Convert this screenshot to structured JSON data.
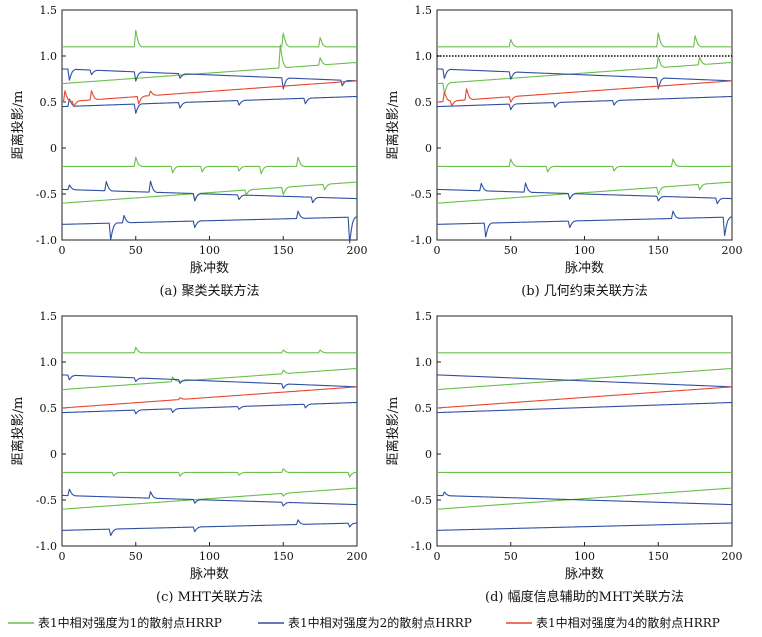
{
  "figure": {
    "legend": [
      {
        "label": "表1中相对强度为1的散射点HRRP",
        "color": "#6abf4b"
      },
      {
        "label": "表1中相对强度为2的散射点HRRP",
        "color": "#2f4fa3"
      },
      {
        "label": "表1中相对强度为4的散射点HRRP",
        "color": "#e8452c"
      }
    ]
  },
  "chart_data": [
    {
      "type": "line",
      "caption": "(a) 聚类关联方法",
      "xlabel": "脉冲数",
      "ylabel": "距离投影/m",
      "xlim": [
        0,
        200
      ],
      "ylim": [
        -1.0,
        1.5
      ],
      "xticks": [
        "0",
        "50",
        "100",
        "150",
        "200"
      ],
      "yticks": [
        "-1.0",
        "-0.5",
        "0",
        "0.5",
        "1.0",
        "1.5"
      ],
      "dotted_reference": null,
      "series": [
        {
          "name": "g1",
          "color_key": 0,
          "start": 1.1,
          "end": 1.1,
          "spikes": [
            [
              50,
              0.18
            ],
            [
              150,
              0.15
            ],
            [
              175,
              0.1
            ]
          ]
        },
        {
          "name": "g2",
          "color_key": 0,
          "start": 0.7,
          "end": 0.93,
          "spikes": [
            [
              148,
              0.25
            ],
            [
              175,
              0.08
            ]
          ]
        },
        {
          "name": "g3",
          "color_key": 0,
          "start": -0.2,
          "end": -0.2,
          "spikes": [
            [
              50,
              0.1
            ],
            [
              75,
              -0.07
            ],
            [
              95,
              -0.06
            ],
            [
              120,
              -0.05
            ],
            [
              135,
              -0.08
            ],
            [
              160,
              0.1
            ]
          ]
        },
        {
          "name": "g4",
          "color_key": 0,
          "start": -0.6,
          "end": -0.37,
          "spikes": [
            [
              90,
              -0.07
            ],
            [
              125,
              -0.05
            ],
            [
              150,
              -0.08
            ],
            [
              178,
              -0.06
            ]
          ]
        },
        {
          "name": "b1",
          "color_key": 1,
          "start": 0.86,
          "end": 0.73,
          "spikes": [
            [
              5,
              -0.12
            ],
            [
              20,
              -0.05
            ],
            [
              50,
              -0.1
            ],
            [
              80,
              -0.05
            ],
            [
              150,
              -0.12
            ],
            [
              190,
              -0.06
            ]
          ]
        },
        {
          "name": "b2",
          "color_key": 1,
          "start": 0.45,
          "end": 0.56,
          "spikes": [
            [
              5,
              0.08
            ],
            [
              50,
              -0.1
            ],
            [
              80,
              -0.06
            ],
            [
              120,
              -0.05
            ],
            [
              165,
              -0.06
            ]
          ]
        },
        {
          "name": "b3",
          "color_key": 1,
          "start": -0.45,
          "end": -0.55,
          "spikes": [
            [
              5,
              0.05
            ],
            [
              30,
              0.1
            ],
            [
              60,
              0.12
            ],
            [
              90,
              -0.08
            ],
            [
              120,
              -0.05
            ],
            [
              170,
              -0.06
            ]
          ]
        },
        {
          "name": "b4",
          "color_key": 1,
          "start": -0.83,
          "end": -0.75,
          "spikes": [
            [
              33,
              -0.18
            ],
            [
              42,
              0.08
            ],
            [
              90,
              -0.07
            ],
            [
              160,
              0.08
            ],
            [
              195,
              -0.28
            ]
          ]
        },
        {
          "name": "r1",
          "color_key": 2,
          "start": 0.5,
          "end": 0.73,
          "spikes": [
            [
              2,
              0.12
            ],
            [
              8,
              -0.06
            ],
            [
              20,
              0.1
            ],
            [
              52,
              -0.08
            ],
            [
              60,
              0.05
            ]
          ]
        }
      ]
    },
    {
      "type": "line",
      "caption": "(b) 几何约束关联方法",
      "xlabel": "脉冲数",
      "ylabel": "距离投影/m",
      "xlim": [
        0,
        200
      ],
      "ylim": [
        -1.0,
        1.5
      ],
      "xticks": [
        "0",
        "50",
        "100",
        "150",
        "200"
      ],
      "yticks": [
        "-1.0",
        "-0.5",
        "0",
        "0.5",
        "1.0",
        "1.5"
      ],
      "dotted_reference": 1.0,
      "series": [
        {
          "name": "g1",
          "color_key": 0,
          "start": 1.1,
          "end": 1.1,
          "spikes": [
            [
              50,
              0.08
            ],
            [
              150,
              0.15
            ],
            [
              175,
              0.12
            ]
          ]
        },
        {
          "name": "g2",
          "color_key": 0,
          "start": 0.7,
          "end": 0.93,
          "spikes": [
            [
              5,
              -0.12
            ],
            [
              150,
              0.12
            ],
            [
              178,
              0.08
            ]
          ]
        },
        {
          "name": "g3",
          "color_key": 0,
          "start": -0.2,
          "end": -0.2,
          "spikes": [
            [
              50,
              0.08
            ],
            [
              75,
              -0.06
            ],
            [
              120,
              -0.05
            ],
            [
              160,
              0.08
            ]
          ]
        },
        {
          "name": "g4",
          "color_key": 0,
          "start": -0.6,
          "end": -0.37,
          "spikes": [
            [
              90,
              -0.06
            ],
            [
              150,
              -0.08
            ],
            [
              178,
              -0.06
            ]
          ]
        },
        {
          "name": "b1",
          "color_key": 1,
          "start": 0.86,
          "end": 0.73,
          "spikes": [
            [
              5,
              -0.1
            ],
            [
              50,
              -0.08
            ],
            [
              150,
              -0.12
            ]
          ]
        },
        {
          "name": "b2",
          "color_key": 1,
          "start": 0.45,
          "end": 0.56,
          "spikes": [
            [
              50,
              -0.06
            ],
            [
              80,
              -0.05
            ],
            [
              120,
              -0.05
            ]
          ]
        },
        {
          "name": "b3",
          "color_key": 1,
          "start": -0.45,
          "end": -0.55,
          "spikes": [
            [
              30,
              0.08
            ],
            [
              60,
              0.1
            ],
            [
              90,
              -0.06
            ],
            [
              150,
              -0.05
            ],
            [
              190,
              -0.06
            ]
          ]
        },
        {
          "name": "b4",
          "color_key": 1,
          "start": -0.83,
          "end": -0.75,
          "spikes": [
            [
              33,
              -0.15
            ],
            [
              90,
              -0.07
            ],
            [
              160,
              0.08
            ],
            [
              195,
              -0.2
            ]
          ]
        },
        {
          "name": "r1",
          "color_key": 2,
          "start": 0.5,
          "end": 0.73,
          "spikes": [
            [
              5,
              0.1
            ],
            [
              10,
              -0.05
            ],
            [
              20,
              0.12
            ],
            [
              50,
              -0.06
            ]
          ]
        }
      ]
    },
    {
      "type": "line",
      "caption": "(c) MHT关联方法",
      "xlabel": "脉冲数",
      "ylabel": "距离投影/m",
      "xlim": [
        0,
        200
      ],
      "ylim": [
        -1.0,
        1.5
      ],
      "xticks": [
        "0",
        "50",
        "100",
        "150",
        "200"
      ],
      "yticks": [
        "-1.0",
        "-0.5",
        "0",
        "0.5",
        "1.0",
        "1.5"
      ],
      "dotted_reference": null,
      "series": [
        {
          "name": "g1",
          "color_key": 0,
          "start": 1.1,
          "end": 1.1,
          "spikes": [
            [
              50,
              0.06
            ],
            [
              150,
              0.03
            ],
            [
              175,
              0.03
            ]
          ]
        },
        {
          "name": "g2",
          "color_key": 0,
          "start": 0.7,
          "end": 0.93,
          "spikes": [
            [
              75,
              0.05
            ],
            [
              150,
              0.04
            ]
          ]
        },
        {
          "name": "g3",
          "color_key": 0,
          "start": -0.2,
          "end": -0.2,
          "spikes": [
            [
              35,
              -0.04
            ],
            [
              80,
              -0.04
            ],
            [
              120,
              -0.03
            ],
            [
              150,
              0.04
            ],
            [
              195,
              -0.05
            ]
          ]
        },
        {
          "name": "g4",
          "color_key": 0,
          "start": -0.6,
          "end": -0.37,
          "spikes": [
            [
              150,
              -0.03
            ]
          ]
        },
        {
          "name": "b1",
          "color_key": 1,
          "start": 0.86,
          "end": 0.73,
          "spikes": [
            [
              5,
              -0.05
            ],
            [
              50,
              -0.04
            ],
            [
              80,
              -0.04
            ],
            [
              150,
              -0.05
            ]
          ]
        },
        {
          "name": "b2",
          "color_key": 1,
          "start": 0.45,
          "end": 0.56,
          "spikes": [
            [
              50,
              -0.04
            ],
            [
              75,
              -0.04
            ],
            [
              120,
              -0.03
            ],
            [
              165,
              -0.04
            ]
          ]
        },
        {
          "name": "b3",
          "color_key": 1,
          "start": -0.45,
          "end": -0.55,
          "spikes": [
            [
              5,
              0.07
            ],
            [
              60,
              0.07
            ],
            [
              90,
              -0.04
            ],
            [
              150,
              -0.04
            ]
          ]
        },
        {
          "name": "b4",
          "color_key": 1,
          "start": -0.83,
          "end": -0.75,
          "spikes": [
            [
              33,
              -0.07
            ],
            [
              90,
              -0.05
            ],
            [
              160,
              0.05
            ],
            [
              195,
              -0.04
            ]
          ]
        },
        {
          "name": "r1",
          "color_key": 2,
          "start": 0.5,
          "end": 0.73,
          "spikes": [
            [
              80,
              0.02
            ]
          ]
        }
      ]
    },
    {
      "type": "line",
      "caption": "(d) 幅度信息辅助的MHT关联方法",
      "xlabel": "脉冲数",
      "ylabel": "距离投影/m",
      "xlim": [
        0,
        200
      ],
      "ylim": [
        -1.0,
        1.5
      ],
      "xticks": [
        "0",
        "50",
        "100",
        "150",
        "200"
      ],
      "yticks": [
        "-1.0",
        "-0.5",
        "0",
        "0.5",
        "1.0",
        "1.5"
      ],
      "dotted_reference": null,
      "series": [
        {
          "name": "g1",
          "color_key": 0,
          "start": 1.1,
          "end": 1.1,
          "spikes": []
        },
        {
          "name": "g2",
          "color_key": 0,
          "start": 0.7,
          "end": 0.93,
          "spikes": []
        },
        {
          "name": "g3",
          "color_key": 0,
          "start": -0.2,
          "end": -0.2,
          "spikes": []
        },
        {
          "name": "g4",
          "color_key": 0,
          "start": -0.6,
          "end": -0.37,
          "spikes": []
        },
        {
          "name": "b1",
          "color_key": 1,
          "start": 0.86,
          "end": 0.73,
          "spikes": []
        },
        {
          "name": "b2",
          "color_key": 1,
          "start": 0.45,
          "end": 0.56,
          "spikes": []
        },
        {
          "name": "b3",
          "color_key": 1,
          "start": -0.45,
          "end": -0.55,
          "spikes": [
            [
              5,
              0.04
            ]
          ]
        },
        {
          "name": "b4",
          "color_key": 1,
          "start": -0.83,
          "end": -0.75,
          "spikes": []
        },
        {
          "name": "r1",
          "color_key": 2,
          "start": 0.5,
          "end": 0.73,
          "spikes": []
        }
      ]
    }
  ]
}
